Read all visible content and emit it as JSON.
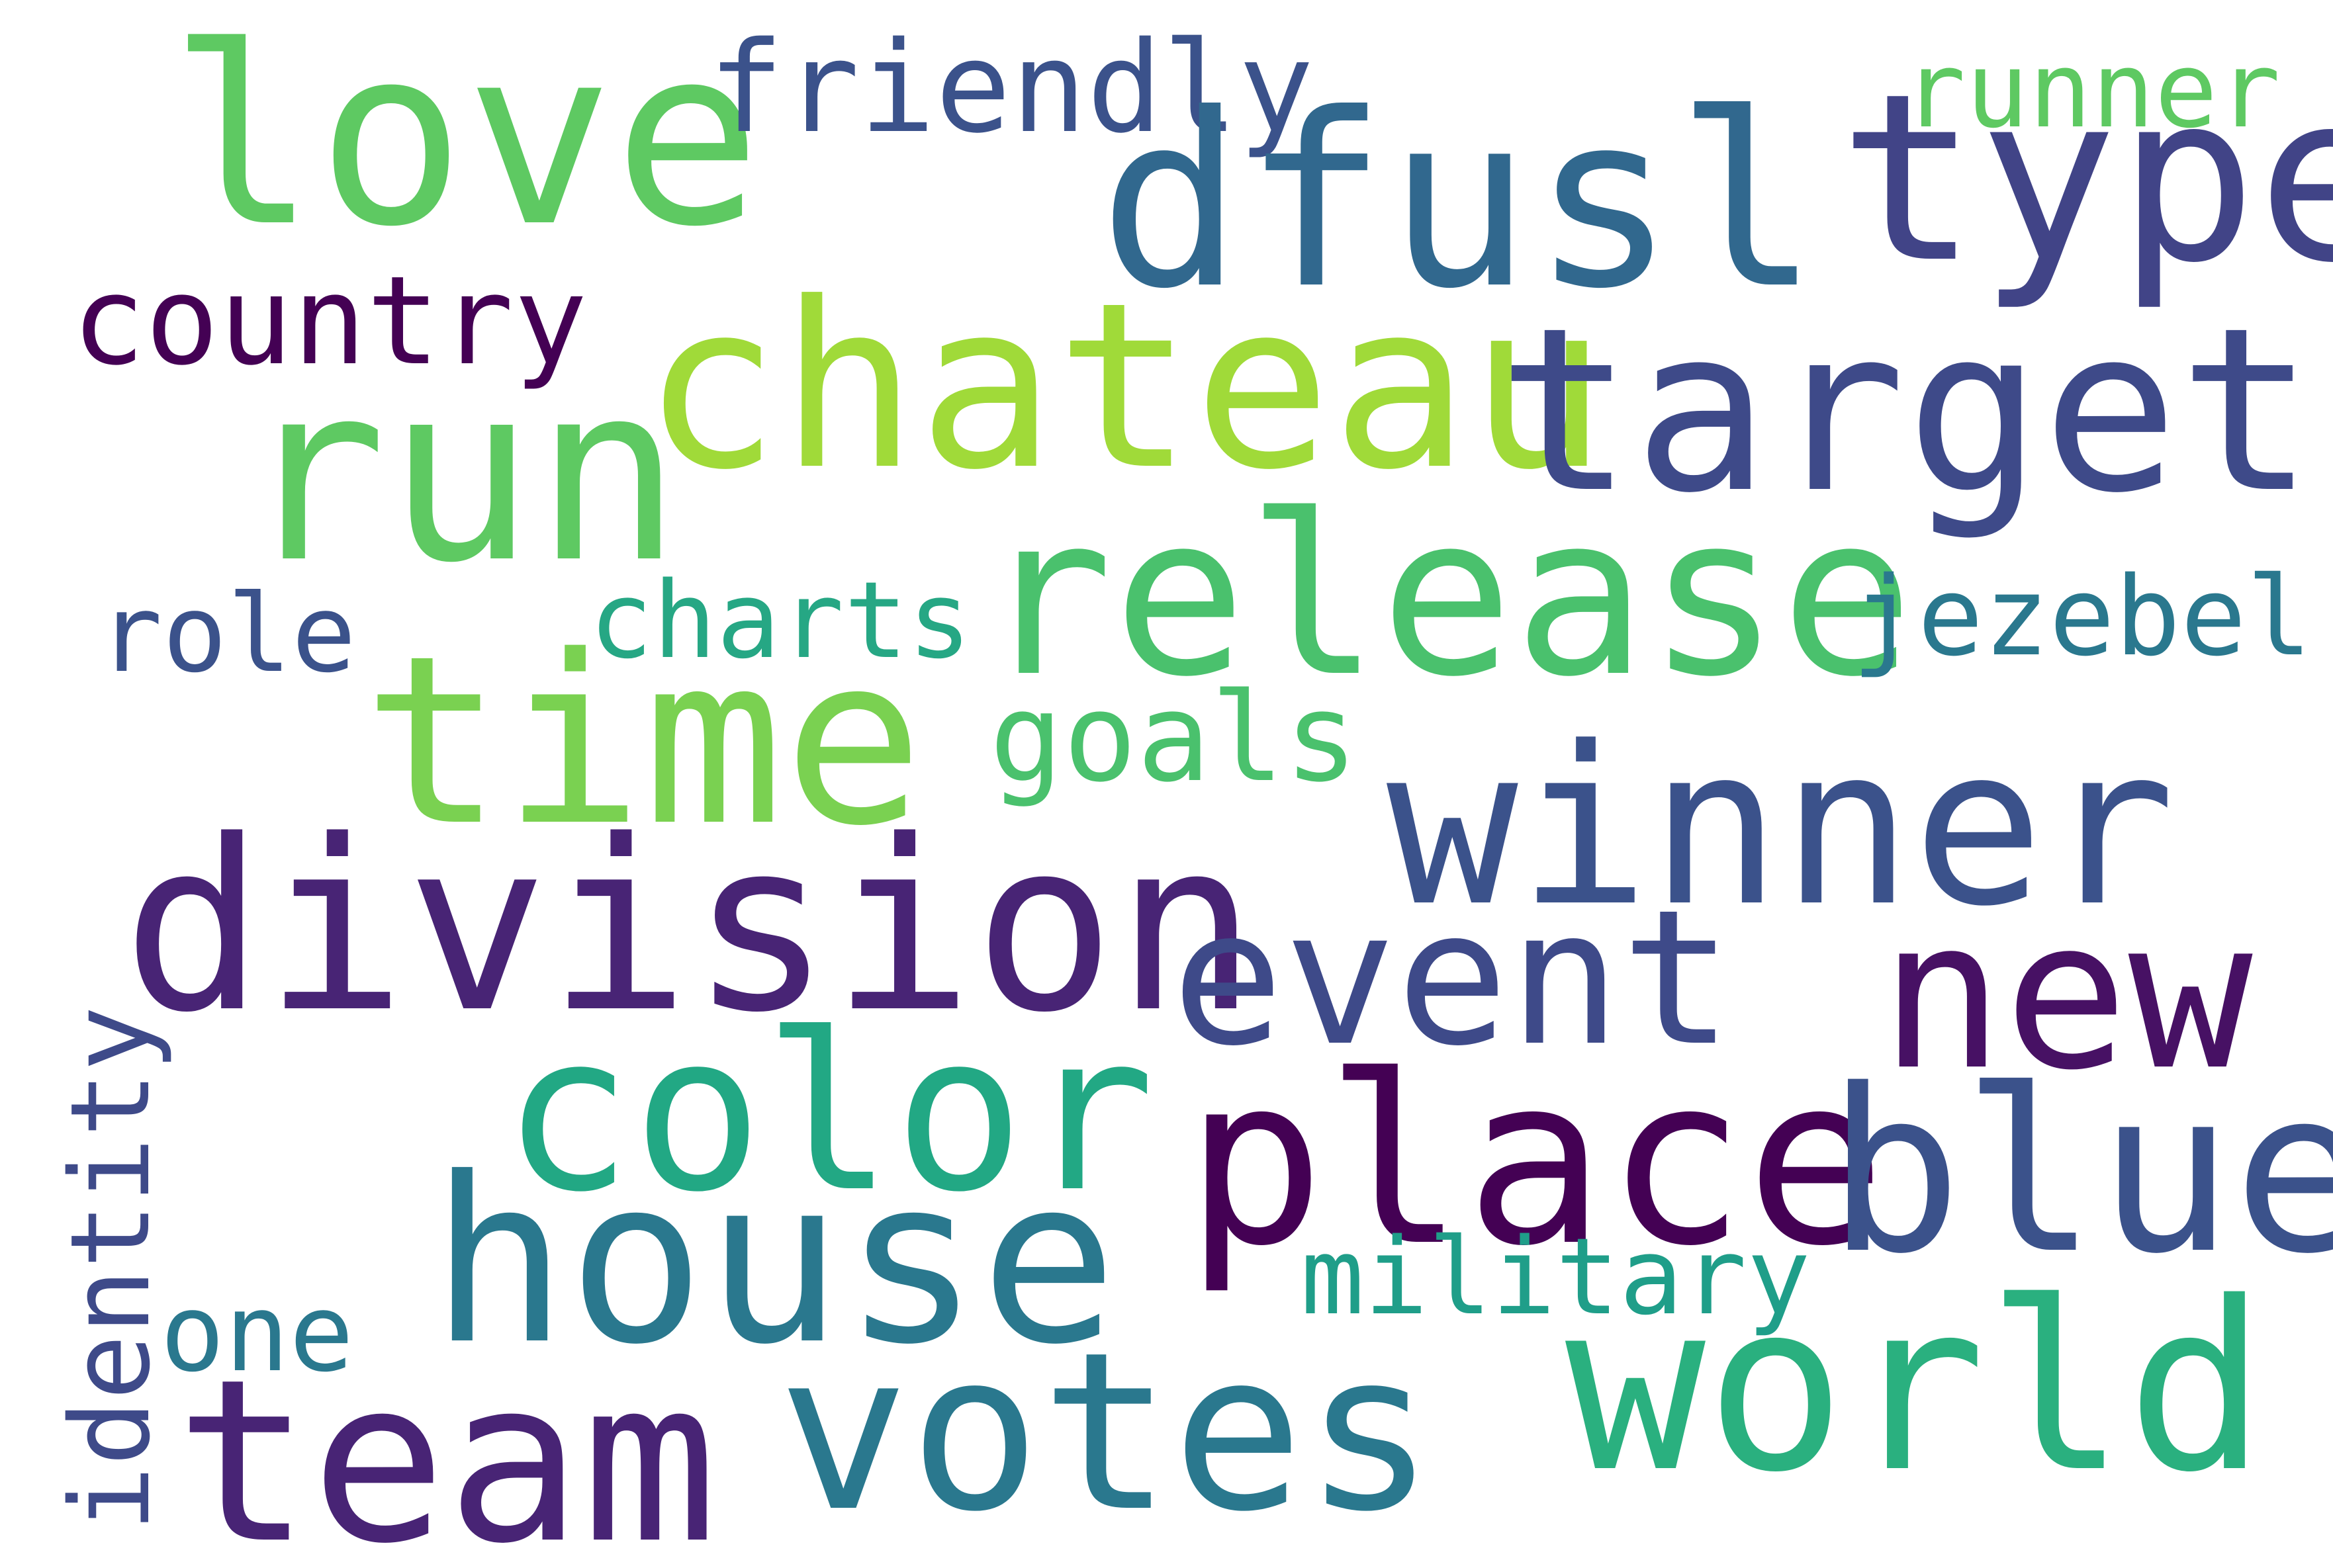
{
  "words": [
    {
      "text": "love",
      "color": "#5ec962"
    },
    {
      "text": "friendly",
      "color": "#3b528b"
    },
    {
      "text": "runner",
      "color": "#5ec962"
    },
    {
      "text": "dfusl",
      "color": "#31688e"
    },
    {
      "text": "type",
      "color": "#414487"
    },
    {
      "text": "country",
      "color": "#440154"
    },
    {
      "text": "chateau",
      "color": "#a0da39"
    },
    {
      "text": "target",
      "color": "#3e4a89"
    },
    {
      "text": "run",
      "color": "#5ec962"
    },
    {
      "text": "release",
      "color": "#4ac16d"
    },
    {
      "text": "role",
      "color": "#3b528b"
    },
    {
      "text": "charts",
      "color": "#26a784"
    },
    {
      "text": "jezebel",
      "color": "#2a788e"
    },
    {
      "text": "time",
      "color": "#7ad151"
    },
    {
      "text": "goals",
      "color": "#4ac16d"
    },
    {
      "text": "winner",
      "color": "#3b528b"
    },
    {
      "text": "division",
      "color": "#482475"
    },
    {
      "text": "event",
      "color": "#3e4a89"
    },
    {
      "text": "new",
      "color": "#471164"
    },
    {
      "text": "color",
      "color": "#22a884"
    },
    {
      "text": "identity",
      "color": "#3e4a89"
    },
    {
      "text": "place",
      "color": "#440154"
    },
    {
      "text": "blue",
      "color": "#3b528b"
    },
    {
      "text": "house",
      "color": "#2a788e"
    },
    {
      "text": "military",
      "color": "#1f9e89"
    },
    {
      "text": "one",
      "color": "#2a788e"
    },
    {
      "text": "world",
      "color": "#2ab07f"
    },
    {
      "text": "team",
      "color": "#482475"
    },
    {
      "text": "votes",
      "color": "#2a788e"
    }
  ]
}
